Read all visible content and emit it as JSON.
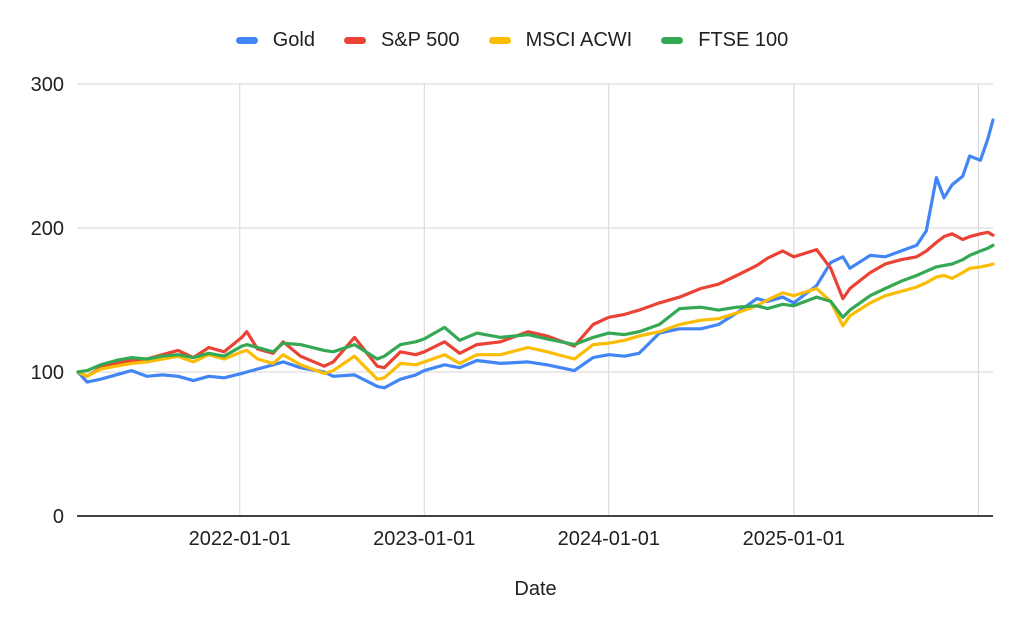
{
  "styles": {
    "background": "#ffffff",
    "gridline_color": "#d6d6d6",
    "axis_line_color": "#424242",
    "text_color": "#202124"
  },
  "chart_data": {
    "type": "line",
    "title": "",
    "xlabel": "Date",
    "ylabel": "",
    "grid": true,
    "legend_position": "top",
    "ylim": [
      0,
      300
    ],
    "y_ticks": [
      0,
      100,
      200,
      300
    ],
    "x_domain": [
      "2021-02-15",
      "2026-01-30"
    ],
    "x_gridline_dates": [
      "2022-01-01",
      "2023-01-01",
      "2024-01-01",
      "2025-01-01",
      "2026-01-01"
    ],
    "x_tick_labels": [
      "2022-01-01",
      "2023-01-01",
      "2024-01-01",
      "2025-01-01"
    ],
    "dates": [
      "2021-02-15",
      "2021-03-05",
      "2021-04-01",
      "2021-05-01",
      "2021-06-01",
      "2021-07-01",
      "2021-08-01",
      "2021-09-01",
      "2021-10-01",
      "2021-11-01",
      "2021-12-01",
      "2022-01-05",
      "2022-01-15",
      "2022-02-05",
      "2022-03-08",
      "2022-03-28",
      "2022-05-01",
      "2022-06-17",
      "2022-07-05",
      "2022-08-16",
      "2022-09-30",
      "2022-10-14",
      "2022-11-15",
      "2022-12-15",
      "2023-01-01",
      "2023-02-10",
      "2023-03-12",
      "2023-04-15",
      "2023-06-01",
      "2023-07-25",
      "2023-09-01",
      "2023-10-25",
      "2023-12-01",
      "2024-01-01",
      "2024-02-01",
      "2024-03-01",
      "2024-04-10",
      "2024-05-20",
      "2024-07-01",
      "2024-08-05",
      "2024-09-10",
      "2024-10-20",
      "2024-11-10",
      "2024-12-10",
      "2025-01-01",
      "2025-02-15",
      "2025-03-15",
      "2025-04-08",
      "2025-04-22",
      "2025-06-01",
      "2025-07-01",
      "2025-08-01",
      "2025-09-01",
      "2025-09-20",
      "2025-10-10",
      "2025-10-25",
      "2025-11-10",
      "2025-12-01",
      "2025-12-15",
      "2026-01-05",
      "2026-01-20",
      "2026-01-30"
    ],
    "series": [
      {
        "name": "Gold",
        "color": "#4285F4",
        "values": [
          100,
          93,
          95,
          98,
          101,
          97,
          98,
          97,
          94,
          97,
          96,
          99,
          100,
          102,
          105,
          107,
          103,
          100,
          97,
          98,
          90,
          89,
          95,
          98,
          101,
          105,
          103,
          108,
          106,
          107,
          105,
          101,
          110,
          112,
          111,
          113,
          127,
          130,
          130,
          133,
          141,
          151,
          149,
          152,
          148,
          160,
          176,
          180,
          172,
          181,
          180,
          184,
          188,
          198,
          235,
          221,
          230,
          236,
          250,
          247,
          262,
          275
        ]
      },
      {
        "name": "S&P 500",
        "color": "#EA4335",
        "values": [
          100,
          97,
          103,
          106,
          108,
          109,
          112,
          115,
          110,
          117,
          114,
          124,
          128,
          116,
          113,
          121,
          111,
          104,
          107,
          124,
          104,
          103,
          114,
          112,
          114,
          121,
          113,
          119,
          121,
          128,
          125,
          118,
          133,
          138,
          140,
          143,
          148,
          152,
          158,
          161,
          167,
          174,
          179,
          184,
          180,
          185,
          172,
          151,
          158,
          169,
          175,
          178,
          180,
          184,
          190,
          194,
          196,
          192,
          194,
          196,
          197,
          195
        ]
      },
      {
        "name": "MSCI ACWI",
        "color": "#FBBC04",
        "values": [
          100,
          97,
          102,
          104,
          106,
          107,
          109,
          111,
          107,
          112,
          109,
          114,
          115,
          109,
          106,
          112,
          105,
          99,
          101,
          111,
          95,
          96,
          106,
          105,
          107,
          112,
          106,
          112,
          112,
          117,
          114,
          109,
          119,
          120,
          122,
          125,
          128,
          133,
          136,
          137,
          141,
          146,
          150,
          155,
          153,
          158,
          149,
          132,
          139,
          148,
          153,
          156,
          159,
          162,
          166,
          167,
          165,
          169,
          172,
          173,
          174,
          175
        ]
      },
      {
        "name": "FTSE 100",
        "color": "#34A853",
        "values": [
          100,
          101,
          105,
          108,
          110,
          109,
          111,
          112,
          110,
          113,
          111,
          118,
          119,
          117,
          114,
          120,
          119,
          115,
          114,
          119,
          109,
          111,
          119,
          121,
          123,
          131,
          122,
          127,
          124,
          126,
          123,
          119,
          124,
          127,
          126,
          128,
          133,
          144,
          145,
          143,
          145,
          146,
          144,
          147,
          146,
          152,
          149,
          138,
          143,
          153,
          158,
          163,
          167,
          170,
          173,
          174,
          175,
          178,
          181,
          184,
          186,
          188
        ]
      }
    ]
  }
}
